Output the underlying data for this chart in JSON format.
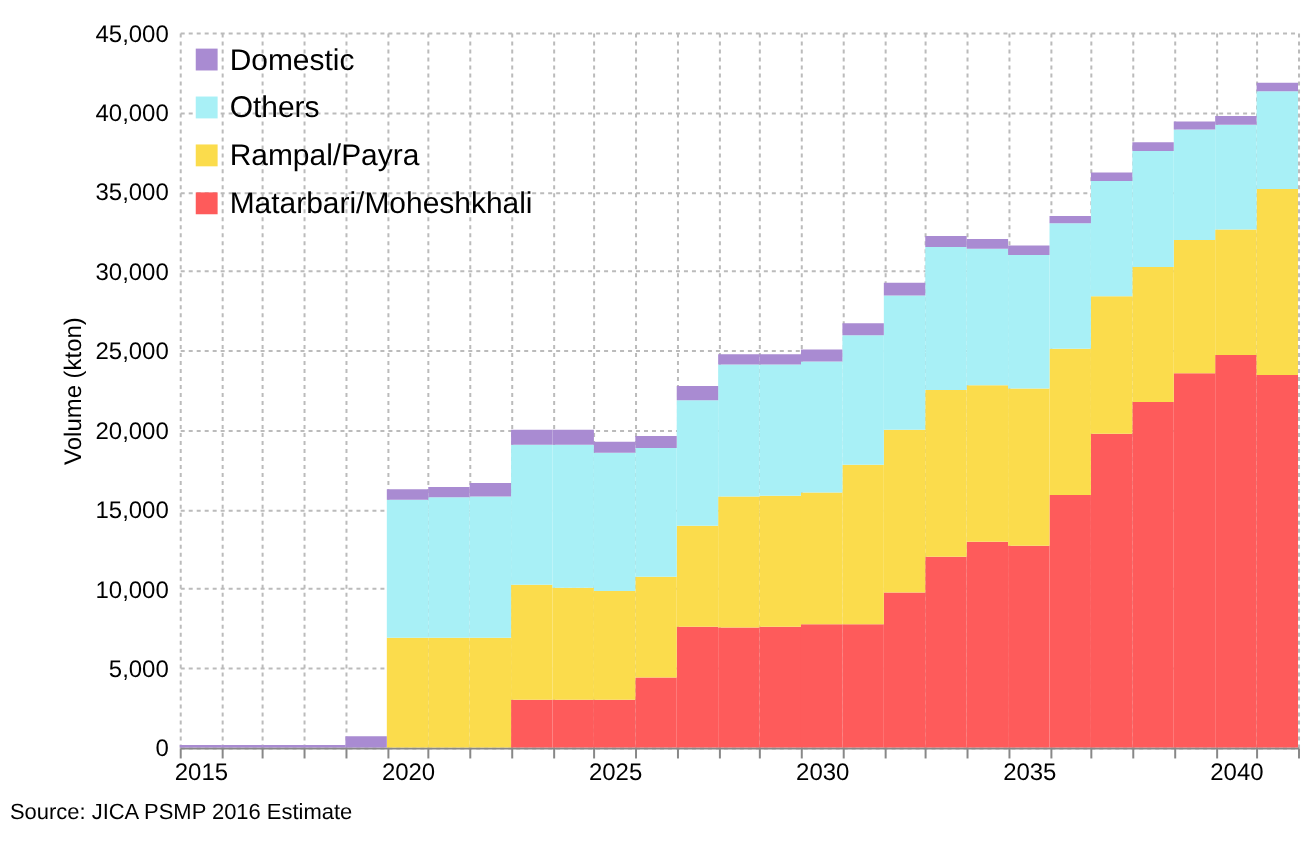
{
  "chart_data": {
    "type": "bar",
    "stacked": true,
    "categories": [
      "2015",
      null,
      null,
      null,
      null,
      "2020",
      null,
      null,
      null,
      null,
      "2025",
      null,
      null,
      null,
      null,
      "2030",
      null,
      null,
      null,
      null,
      "2035",
      null,
      null,
      null,
      null,
      "2040",
      null
    ],
    "series": [
      {
        "name": "Matarbari/Moheshkhali",
        "color": "#fe5b5b",
        "values": [
          0,
          0,
          0,
          0,
          0,
          0,
          0,
          0,
          3000,
          3000,
          3000,
          4400,
          7600,
          7550,
          7600,
          7750,
          7750,
          9750,
          12000,
          12950,
          12700,
          15900,
          19750,
          21750,
          23550,
          24700,
          23450
        ]
      },
      {
        "name": "Rampal/Payra",
        "color": "#fbdc4c",
        "values": [
          0,
          0,
          0,
          0,
          0,
          6900,
          6900,
          6900,
          7250,
          7050,
          6850,
          6350,
          6350,
          8250,
          8250,
          8300,
          10050,
          10250,
          10500,
          9850,
          9900,
          9200,
          8650,
          8500,
          8400,
          7900,
          11700
        ]
      },
      {
        "name": "Others",
        "color": "#a8f0f6",
        "values": [
          0,
          0,
          0,
          0,
          0,
          8700,
          8850,
          8900,
          8800,
          9000,
          8700,
          8100,
          7900,
          8300,
          8250,
          8250,
          8150,
          8450,
          9000,
          8600,
          8400,
          7900,
          7250,
          7300,
          6950,
          6600,
          6150
        ]
      },
      {
        "name": "Domestic",
        "color": "#a98bd2",
        "values": [
          150,
          150,
          150,
          150,
          700,
          650,
          650,
          850,
          950,
          950,
          700,
          750,
          900,
          650,
          650,
          750,
          750,
          800,
          700,
          600,
          600,
          450,
          550,
          550,
          500,
          550,
          550
        ]
      }
    ],
    "ylabel": "Volume  (kton)",
    "ylim": [
      0,
      45000
    ],
    "yticks": [
      0,
      {
        "value": 5000,
        "label": "5,000"
      },
      {
        "value": 10000,
        "label": "10,000"
      },
      {
        "value": 15000,
        "label": "15,000"
      },
      {
        "value": 20000,
        "label": "20,000"
      },
      {
        "value": 25000,
        "label": "25,000"
      },
      {
        "value": 30000,
        "label": "30,000"
      },
      {
        "value": 35000,
        "label": "35,000"
      },
      {
        "value": 40000,
        "label": "40,000"
      },
      {
        "value": 45000,
        "label": "45,000"
      }
    ],
    "grid": true,
    "legend": "top left",
    "annotations": [
      "Source: JICA PSMP 2016 Estimate"
    ]
  }
}
